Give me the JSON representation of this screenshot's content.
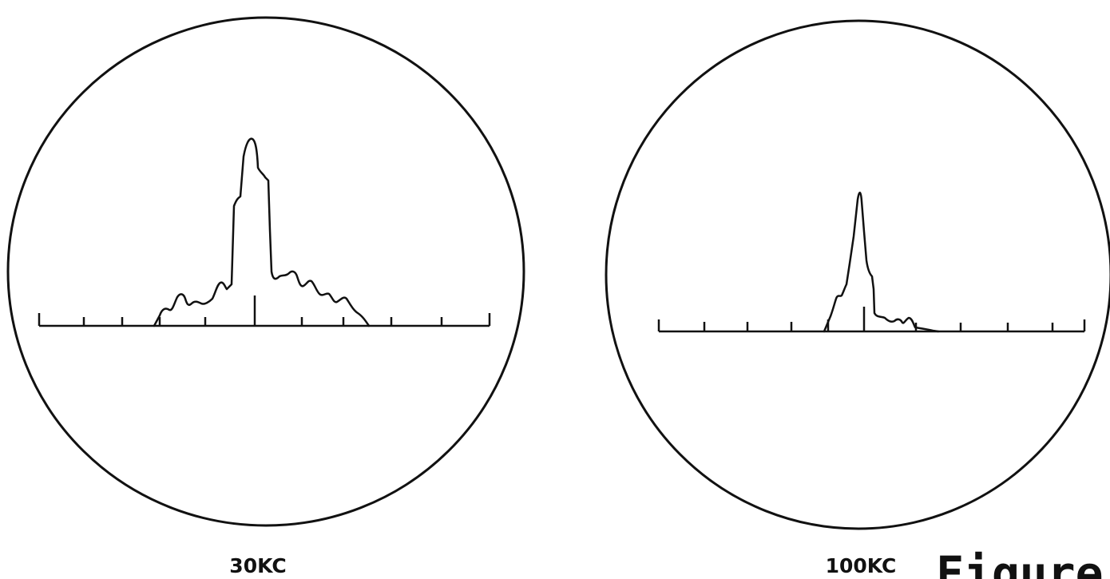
{
  "scopes": [
    {
      "label": "30KC"
    },
    {
      "label": "100KC"
    }
  ],
  "figure_caption": "Figure",
  "colors": {
    "ink": "#111111",
    "background": "#ffffff"
  }
}
